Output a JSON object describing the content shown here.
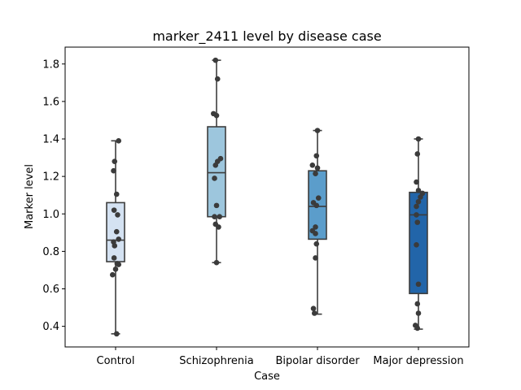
{
  "chart_data": {
    "type": "box",
    "title": "marker_2411 level by disease case",
    "xlabel": "Case",
    "ylabel": "Marker level",
    "ylim": [
      0.29,
      1.89
    ],
    "yticks": [
      "0.4",
      "0.6",
      "0.8",
      "1.0",
      "1.2",
      "1.4",
      "1.6",
      "1.8"
    ],
    "grid": false,
    "legend": "none",
    "categories": [
      "Control",
      "Schizophrenia",
      "Bipolar disorder",
      "Major depression"
    ],
    "colors": [
      "#d4e2f2",
      "#9dc6dd",
      "#5b9dcb",
      "#2265a9"
    ],
    "point_color": "#3b3b3b",
    "line_color": "#3d3d3d",
    "boxes": [
      {
        "whisker_low": 0.36,
        "q1": 0.745,
        "median": 0.86,
        "q3": 1.06,
        "whisker_high": 1.39
      },
      {
        "whisker_low": 0.74,
        "q1": 0.985,
        "median": 1.22,
        "q3": 1.465,
        "whisker_high": 1.82
      },
      {
        "whisker_low": 0.465,
        "q1": 0.865,
        "median": 1.04,
        "q3": 1.23,
        "whisker_high": 1.445
      },
      {
        "whisker_low": 0.385,
        "q1": 0.575,
        "median": 0.995,
        "q3": 1.115,
        "whisker_high": 1.4
      }
    ],
    "points": [
      [
        1.39,
        1.28,
        1.23,
        1.105,
        1.02,
        0.995,
        0.905,
        0.865,
        0.85,
        0.83,
        0.765,
        0.735,
        0.73,
        0.705,
        0.675,
        0.36
      ],
      [
        1.82,
        1.72,
        1.535,
        1.525,
        1.295,
        1.28,
        1.26,
        1.19,
        1.045,
        0.985,
        0.985,
        0.945,
        0.93,
        0.74
      ],
      [
        1.445,
        1.31,
        1.26,
        1.245,
        1.215,
        1.085,
        1.06,
        1.045,
        0.93,
        0.91,
        0.895,
        0.84,
        0.765,
        0.495,
        0.47
      ],
      [
        1.4,
        1.32,
        1.17,
        1.125,
        1.11,
        1.09,
        1.065,
        1.04,
        0.995,
        0.955,
        0.835,
        0.625,
        0.52,
        0.47,
        0.405,
        0.39
      ]
    ],
    "point_offsets": [
      [
        0.03,
        -0.01,
        -0.02,
        0.01,
        -0.015,
        0.02,
        0.01,
        0.03,
        -0.02,
        -0.01,
        -0.015,
        0.015,
        0.03,
        0.0,
        -0.03,
        0.01
      ],
      [
        -0.01,
        0.01,
        -0.03,
        0.0,
        0.04,
        0.01,
        -0.01,
        -0.02,
        0.0,
        -0.02,
        0.03,
        -0.01,
        0.02,
        0.0
      ],
      [
        0.0,
        -0.01,
        -0.05,
        0.0,
        -0.02,
        0.01,
        -0.04,
        -0.01,
        -0.02,
        -0.05,
        -0.02,
        -0.01,
        -0.02,
        -0.04,
        -0.03
      ],
      [
        0.0,
        -0.01,
        -0.02,
        0.0,
        0.04,
        0.02,
        0.0,
        -0.02,
        -0.02,
        -0.01,
        -0.02,
        0.0,
        -0.01,
        0.0,
        -0.03,
        -0.01
      ]
    ]
  }
}
